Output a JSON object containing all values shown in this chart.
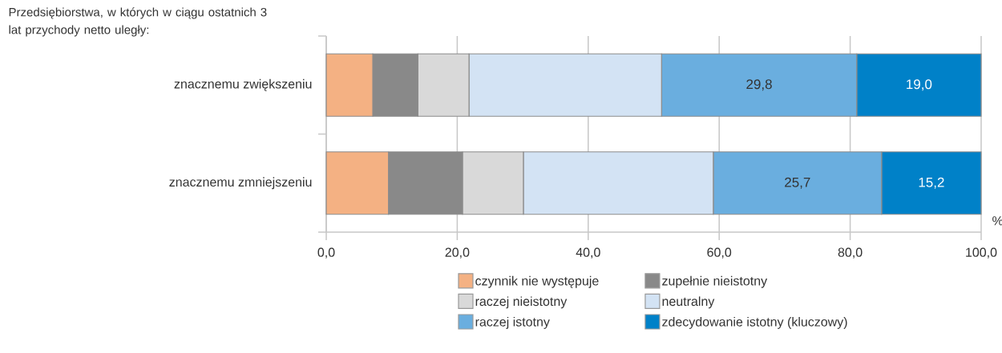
{
  "chart_data": {
    "type": "bar",
    "orientation": "horizontal",
    "stacked": true,
    "title": "Przedsiębiorstwa, w których w ciągu ostatnich 3 lat przychody netto uległy:",
    "xlabel": "%",
    "categories": [
      "znacznemu zwiększeniu",
      "znacznemu zmniejszeniu"
    ],
    "series": [
      {
        "name": "czynnik nie występuje",
        "color": "#f4b183",
        "values": [
          7.1,
          9.5
        ]
      },
      {
        "name": "zupełnie nieistotny",
        "color": "#898989",
        "values": [
          6.9,
          11.3
        ]
      },
      {
        "name": "raczej nieistotny",
        "color": "#d9d9d9",
        "values": [
          7.8,
          9.3
        ]
      },
      {
        "name": "neutralny",
        "color": "#d3e3f4",
        "values": [
          29.4,
          29.0
        ]
      },
      {
        "name": "raczej istotny",
        "color": "#6aaedf",
        "values": [
          29.8,
          25.7
        ],
        "value_labels": [
          "29,8",
          "25,7"
        ]
      },
      {
        "name": "zdecydowanie istotny (kluczowy)",
        "color": "#0081c8",
        "values": [
          19.0,
          15.2
        ],
        "value_labels": [
          "19,0",
          "15,2"
        ]
      }
    ],
    "xlim": [
      0,
      100
    ],
    "xticks": [
      {
        "value": 0,
        "label": "0,0"
      },
      {
        "value": 20,
        "label": "20,0"
      },
      {
        "value": 40,
        "label": "40,0"
      },
      {
        "value": 60,
        "label": "60,0"
      },
      {
        "value": 80,
        "label": "80,0"
      },
      {
        "value": 100,
        "label": "100,0"
      }
    ],
    "grid": "x",
    "legend": "bottom"
  }
}
